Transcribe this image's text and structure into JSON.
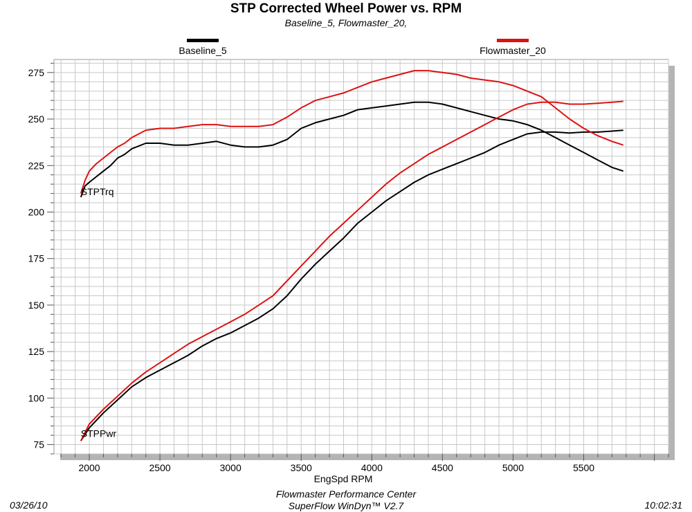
{
  "header": {
    "title": "STP Corrected Wheel Power vs. RPM",
    "subtitle": "Baseline_5, Flowmaster_20,"
  },
  "footer": {
    "date": "03/26/10",
    "line1": "Flowmaster Performance Center",
    "line2": "SuperFlow WinDyn™ V2.7",
    "time": "10:02:31"
  },
  "colors": {
    "baseline": "#000000",
    "flowmaster": "#dd1111",
    "grid": "#c8c8c8",
    "shadow": "#b4b4b4"
  },
  "chart_data": {
    "type": "line",
    "title": "STP Corrected Wheel Power vs. RPM",
    "subtitle": "Baseline_5, Flowmaster_20,",
    "xlabel": "EngSpd RPM",
    "ylabel": "",
    "xlim": [
      1750,
      6100
    ],
    "ylim": [
      70,
      282
    ],
    "xticks": [
      2000,
      2500,
      3000,
      3500,
      4000,
      4500,
      5000,
      5500
    ],
    "yticks": [
      75,
      100,
      125,
      150,
      175,
      200,
      225,
      250,
      275
    ],
    "grid": true,
    "legend_position": "top",
    "curve_labels": [
      {
        "text": "STPTrq",
        "x": 1940,
        "y": 211
      },
      {
        "text": "STPPwr",
        "x": 1940,
        "y": 81
      }
    ],
    "series": [
      {
        "name": "Baseline_5",
        "color": "#000000",
        "curves": [
          {
            "label": "STPTrq",
            "x": [
              1940,
              1970,
              2000,
              2050,
              2100,
              2150,
              2200,
              2250,
              2300,
              2400,
              2500,
              2600,
              2700,
              2800,
              2900,
              3000,
              3100,
              3200,
              3300,
              3400,
              3500,
              3600,
              3700,
              3800,
              3900,
              4000,
              4100,
              4200,
              4300,
              4400,
              4500,
              4600,
              4700,
              4800,
              4900,
              5000,
              5100,
              5200,
              5300,
              5400,
              5500,
              5600,
              5700,
              5780
            ],
            "y": [
              208,
              214,
              216,
              219,
              222,
              225,
              229,
              231,
              234,
              237,
              237,
              236,
              236,
              237,
              238,
              236,
              235,
              235,
              236,
              239,
              245,
              248,
              250,
              252,
              255,
              256,
              257,
              258,
              259,
              259,
              258,
              256,
              254,
              252,
              250,
              249,
              247,
              244,
              240,
              236,
              232,
              228,
              224,
              222
            ]
          },
          {
            "label": "STPPwr",
            "x": [
              1940,
              2000,
              2100,
              2200,
              2300,
              2400,
              2500,
              2600,
              2700,
              2800,
              2900,
              3000,
              3100,
              3200,
              3300,
              3400,
              3500,
              3600,
              3700,
              3800,
              3900,
              4000,
              4100,
              4200,
              4300,
              4400,
              4500,
              4600,
              4700,
              4800,
              4900,
              5000,
              5100,
              5200,
              5300,
              5400,
              5500,
              5600,
              5700,
              5780
            ],
            "y": [
              77,
              84,
              92,
              99,
              106,
              111,
              115,
              119,
              123,
              128,
              132,
              135,
              139,
              143,
              148,
              155,
              164,
              172,
              179,
              186,
              194,
              200,
              206,
              211,
              216,
              220,
              223,
              226,
              229,
              232,
              236,
              239,
              242,
              243,
              243,
              242.5,
              243,
              243,
              243.5,
              244
            ]
          }
        ]
      },
      {
        "name": "Flowmaster_20",
        "color": "#dd1111",
        "curves": [
          {
            "label": "STPTrq",
            "x": [
              1940,
              1970,
              2000,
              2050,
              2100,
              2150,
              2200,
              2250,
              2300,
              2400,
              2500,
              2600,
              2700,
              2800,
              2900,
              3000,
              3100,
              3200,
              3300,
              3400,
              3500,
              3600,
              3700,
              3800,
              3900,
              4000,
              4100,
              4200,
              4300,
              4400,
              4500,
              4600,
              4700,
              4800,
              4900,
              5000,
              5100,
              5200,
              5300,
              5400,
              5500,
              5600,
              5700,
              5780
            ],
            "y": [
              210,
              217,
              222,
              226,
              229,
              232,
              235,
              237,
              240,
              244,
              245,
              245,
              246,
              247,
              247,
              246,
              246,
              246,
              247,
              251,
              256,
              260,
              262,
              264,
              267,
              270,
              272,
              274,
              276,
              276,
              275,
              274,
              272,
              271,
              270,
              268,
              265,
              262,
              256,
              250,
              245,
              241,
              238,
              236
            ]
          },
          {
            "label": "STPPwr",
            "x": [
              1940,
              2000,
              2100,
              2200,
              2300,
              2400,
              2500,
              2600,
              2700,
              2800,
              2900,
              3000,
              3100,
              3200,
              3300,
              3400,
              3500,
              3600,
              3700,
              3800,
              3900,
              4000,
              4100,
              4200,
              4300,
              4400,
              4500,
              4600,
              4700,
              4800,
              4900,
              5000,
              5100,
              5200,
              5300,
              5400,
              5500,
              5600,
              5700,
              5780
            ],
            "y": [
              77,
              86,
              94,
              101,
              108,
              114,
              119,
              124,
              129,
              133,
              137,
              141,
              145,
              150,
              155,
              163,
              171,
              179,
              187,
              194,
              201,
              208,
              215,
              221,
              226,
              231,
              235,
              239,
              243,
              247,
              251,
              255,
              258,
              259,
              259,
              258,
              258,
              258.5,
              259,
              259.5
            ]
          }
        ]
      }
    ]
  }
}
